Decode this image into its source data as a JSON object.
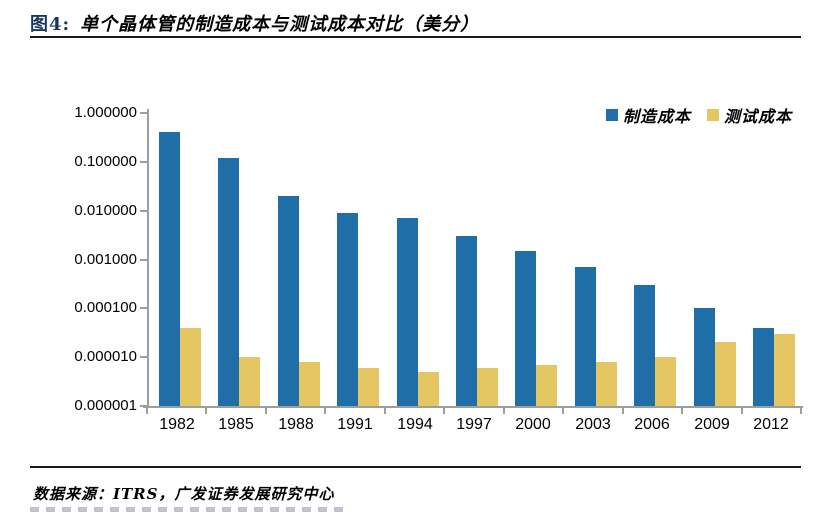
{
  "title": {
    "prefix": "图4:",
    "text": "单个晶体管的制造成本与测试成本对比（美分）"
  },
  "colors": {
    "series_manufacturing": "#1F6EA7",
    "series_testing": "#E4C763",
    "title_prefix": "#17375E",
    "axis": "#9e9e9e"
  },
  "chart_data": {
    "type": "bar",
    "y_scale": "log",
    "title": "单个晶体管的制造成本与测试成本对比（美分）",
    "categories": [
      "1982",
      "1985",
      "1988",
      "1991",
      "1994",
      "1997",
      "2000",
      "2003",
      "2006",
      "2009",
      "2012"
    ],
    "series": [
      {
        "name": "制造成本",
        "color": "#1F6EA7",
        "values": [
          0.4,
          0.12,
          0.02,
          0.009,
          0.007,
          0.003,
          0.0015,
          0.0007,
          0.0003,
          0.0001,
          4e-05
        ]
      },
      {
        "name": "测试成本",
        "color": "#E4C763",
        "values": [
          4e-05,
          1e-05,
          8e-06,
          6e-06,
          5e-06,
          6e-06,
          7e-06,
          8e-06,
          1e-05,
          2e-05,
          3e-05
        ]
      }
    ],
    "y_tick_labels": [
      "1.000000",
      "0.100000",
      "0.010000",
      "0.001000",
      "0.000100",
      "0.000010",
      "0.000001"
    ],
    "ylim": [
      1e-06,
      1.0
    ],
    "xlabel": "",
    "ylabel": "",
    "grid": false,
    "legend_position": "top-right"
  },
  "footer": {
    "source_text": "数据来源：ITRS，广发证券发展研究中心"
  }
}
